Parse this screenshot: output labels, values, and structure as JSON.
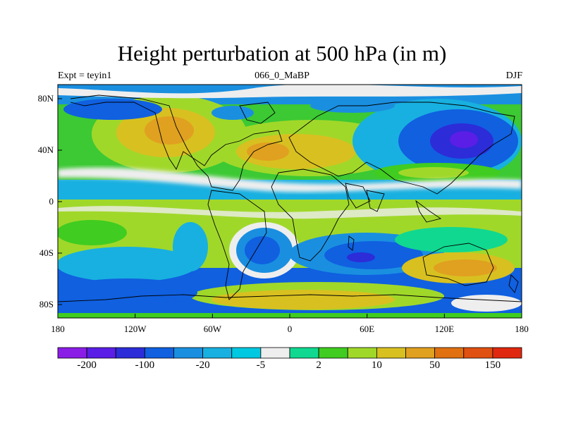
{
  "title": "Height perturbation at 500 hPa (in m)",
  "subtitle_left": "Expt = teyin1",
  "subtitle_center": "066_0_MaBP",
  "subtitle_right": "DJF",
  "lat_ticks": [
    "80N",
    "40N",
    "0",
    "40S",
    "80S"
  ],
  "lon_ticks": [
    "180",
    "120W",
    "60W",
    "0",
    "60E",
    "120E",
    "180"
  ],
  "colorbar": {
    "colors": [
      "#8a1ee6",
      "#5a1ee6",
      "#2c2cd8",
      "#1060e0",
      "#1a8fe0",
      "#18b0e0",
      "#00c8e0",
      "#eeeeee",
      "#10d890",
      "#40cc20",
      "#a0d82a",
      "#d8c020",
      "#e0a020",
      "#e07010",
      "#e05010",
      "#e02810"
    ],
    "labels": [
      "-200",
      "-100",
      "-20",
      "-5",
      "2",
      "10",
      "50",
      "150"
    ],
    "label_slots": [
      1,
      3,
      5,
      7,
      9,
      11,
      13,
      15
    ]
  }
}
